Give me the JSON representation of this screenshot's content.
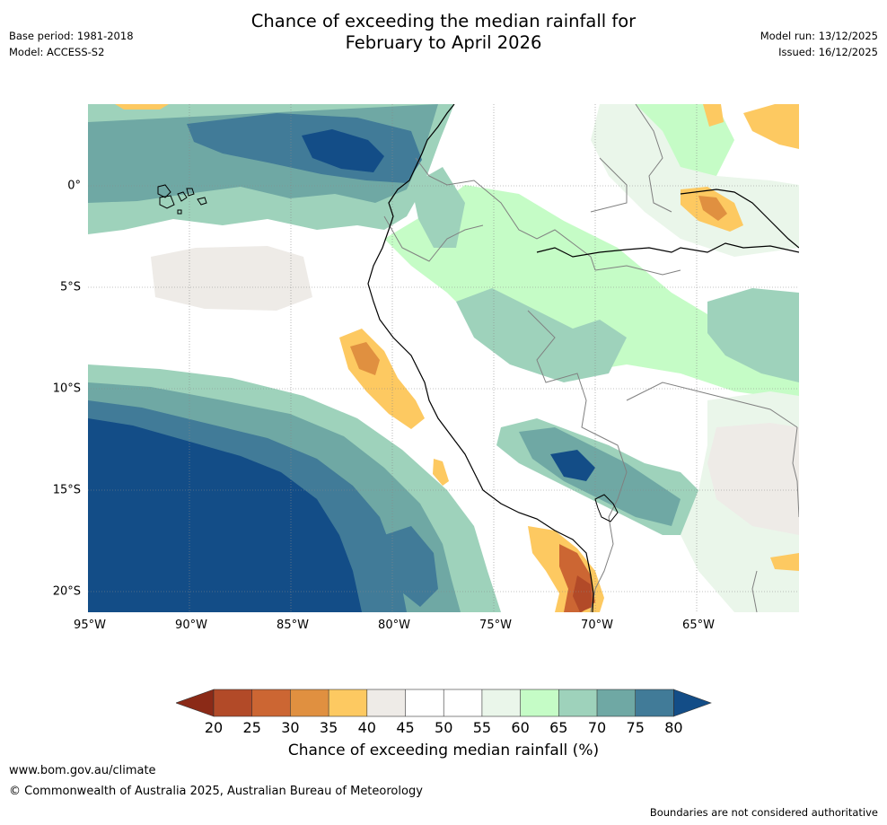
{
  "header": {
    "title_line1": "Chance of exceeding the median rainfall for",
    "title_line2": "February to April 2026",
    "base_period": "Base period: 1981-2018",
    "model": "Model: ACCESS-S2",
    "model_run": "Model run: 13/12/2025",
    "issued": "Issued: 16/12/2025"
  },
  "map": {
    "lat_labels": [
      "0°",
      "5°S",
      "10°S",
      "15°S",
      "20°S"
    ],
    "lon_labels": [
      "95°W",
      "90°W",
      "85°W",
      "80°W",
      "75°W",
      "70°W",
      "65°W"
    ],
    "colors": {
      "c20": "#8b2a17",
      "c25": "#b24a28",
      "c30": "#cc6633",
      "c35": "#e09040",
      "c40": "#fdc961",
      "c45": "#eeebe7",
      "c50": "#ffffff",
      "c55": "#eaf6ea",
      "c60": "#c5fcc6",
      "c65": "#9ed2bb",
      "c70": "#6fa8a4",
      "c75": "#417b98",
      "c80": "#134d87"
    }
  },
  "legend": {
    "ticks": [
      "20",
      "25",
      "30",
      "35",
      "40",
      "45",
      "50",
      "55",
      "60",
      "65",
      "70",
      "75",
      "80"
    ],
    "title": "Chance of exceeding median rainfall (%)"
  },
  "footer": {
    "url": "www.bom.gov.au/climate",
    "copyright": "© Commonwealth of Australia 2025, Australian Bureau of Meteorology",
    "note": "Boundaries are not considered authoritative"
  }
}
